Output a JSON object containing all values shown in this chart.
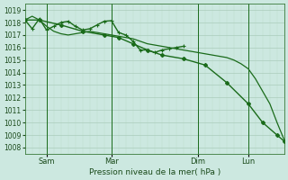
{
  "bg_color": "#cce8e0",
  "grid_major_color": "#aaccbb",
  "grid_minor_color": "#bbddcc",
  "line_color": "#1a6b1a",
  "xlabel": "Pression niveau de la mer( hPa )",
  "ylim": [
    1007.5,
    1019.5
  ],
  "yticks": [
    1008,
    1009,
    1010,
    1011,
    1012,
    1013,
    1014,
    1015,
    1016,
    1017,
    1018,
    1019
  ],
  "xtick_labels": [
    "Sam",
    "Mar",
    "Dim",
    "Lun"
  ],
  "series1_x": [
    0,
    1,
    2,
    3,
    4,
    5,
    6,
    7,
    8,
    9,
    10,
    11,
    12,
    13,
    14,
    15,
    16,
    17,
    18,
    19,
    20,
    21,
    22
  ],
  "series1_y": [
    1018.2,
    1017.5,
    1018.3,
    1017.4,
    1017.7,
    1018.0,
    1018.1,
    1017.7,
    1017.4,
    1017.5,
    1017.8,
    1018.1,
    1018.15,
    1017.2,
    1017.0,
    1016.5,
    1015.8,
    1015.8,
    1015.6,
    1015.8,
    1015.9,
    1016.0,
    1016.1
  ],
  "series2_x": [
    0,
    1,
    2,
    3,
    4,
    5,
    6,
    7,
    8,
    9,
    10,
    11,
    12,
    13,
    14,
    15,
    16,
    17,
    18,
    19,
    20,
    21,
    22,
    23,
    24,
    25,
    26,
    27,
    28,
    29,
    30,
    31,
    32,
    33,
    34,
    35,
    36
  ],
  "series2_y": [
    1018.2,
    1018.5,
    1018.2,
    1017.7,
    1017.3,
    1017.1,
    1017.0,
    1017.1,
    1017.2,
    1017.3,
    1017.2,
    1017.1,
    1017.0,
    1016.9,
    1016.8,
    1016.7,
    1016.5,
    1016.3,
    1016.2,
    1016.1,
    1016.0,
    1015.9,
    1015.8,
    1015.7,
    1015.6,
    1015.5,
    1015.4,
    1015.3,
    1015.2,
    1015.0,
    1014.7,
    1014.3,
    1013.5,
    1012.5,
    1011.5,
    1010.0,
    1008.6
  ],
  "series3_x": [
    0,
    2,
    5,
    8,
    11,
    13,
    15,
    17,
    19,
    22,
    25,
    28,
    31,
    33,
    35,
    36
  ],
  "series3_y": [
    1018.2,
    1018.2,
    1017.8,
    1017.3,
    1017.0,
    1016.8,
    1016.3,
    1015.8,
    1015.4,
    1015.1,
    1014.6,
    1013.2,
    1011.5,
    1010.0,
    1009.0,
    1008.5
  ],
  "n_points": 37,
  "sam_idx": 3,
  "mar_idx": 12,
  "dim_idx": 24,
  "lun_idx": 31,
  "vline_idxs": [
    3,
    12,
    24,
    31
  ]
}
